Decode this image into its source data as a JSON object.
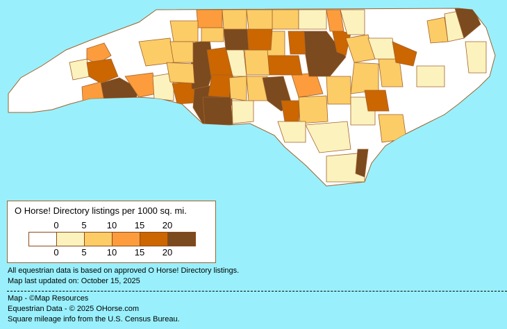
{
  "legend": {
    "title": "O Horse! Directory listings per 1000 sq. mi.",
    "ticks": [
      "0",
      "5",
      "10",
      "15",
      "20"
    ],
    "colors": [
      "#ffffff",
      "#fcf2be",
      "#fccc66",
      "#fc9c3c",
      "#cc6600",
      "#7b4a1e"
    ]
  },
  "notes": {
    "data_basis": "All equestrian data is based on approved O Horse! Directory listings.",
    "updated": "Map last updated on: October 15, 2025",
    "map_credit": "Map - ©Map Resources",
    "data_credit": "Equestrian Data - © 2025 OHorse.com",
    "census_credit": "Square mileage info from the U.S. Census Bureau."
  },
  "colors": {
    "background": "#99f0fc",
    "border": "#a0622d"
  }
}
